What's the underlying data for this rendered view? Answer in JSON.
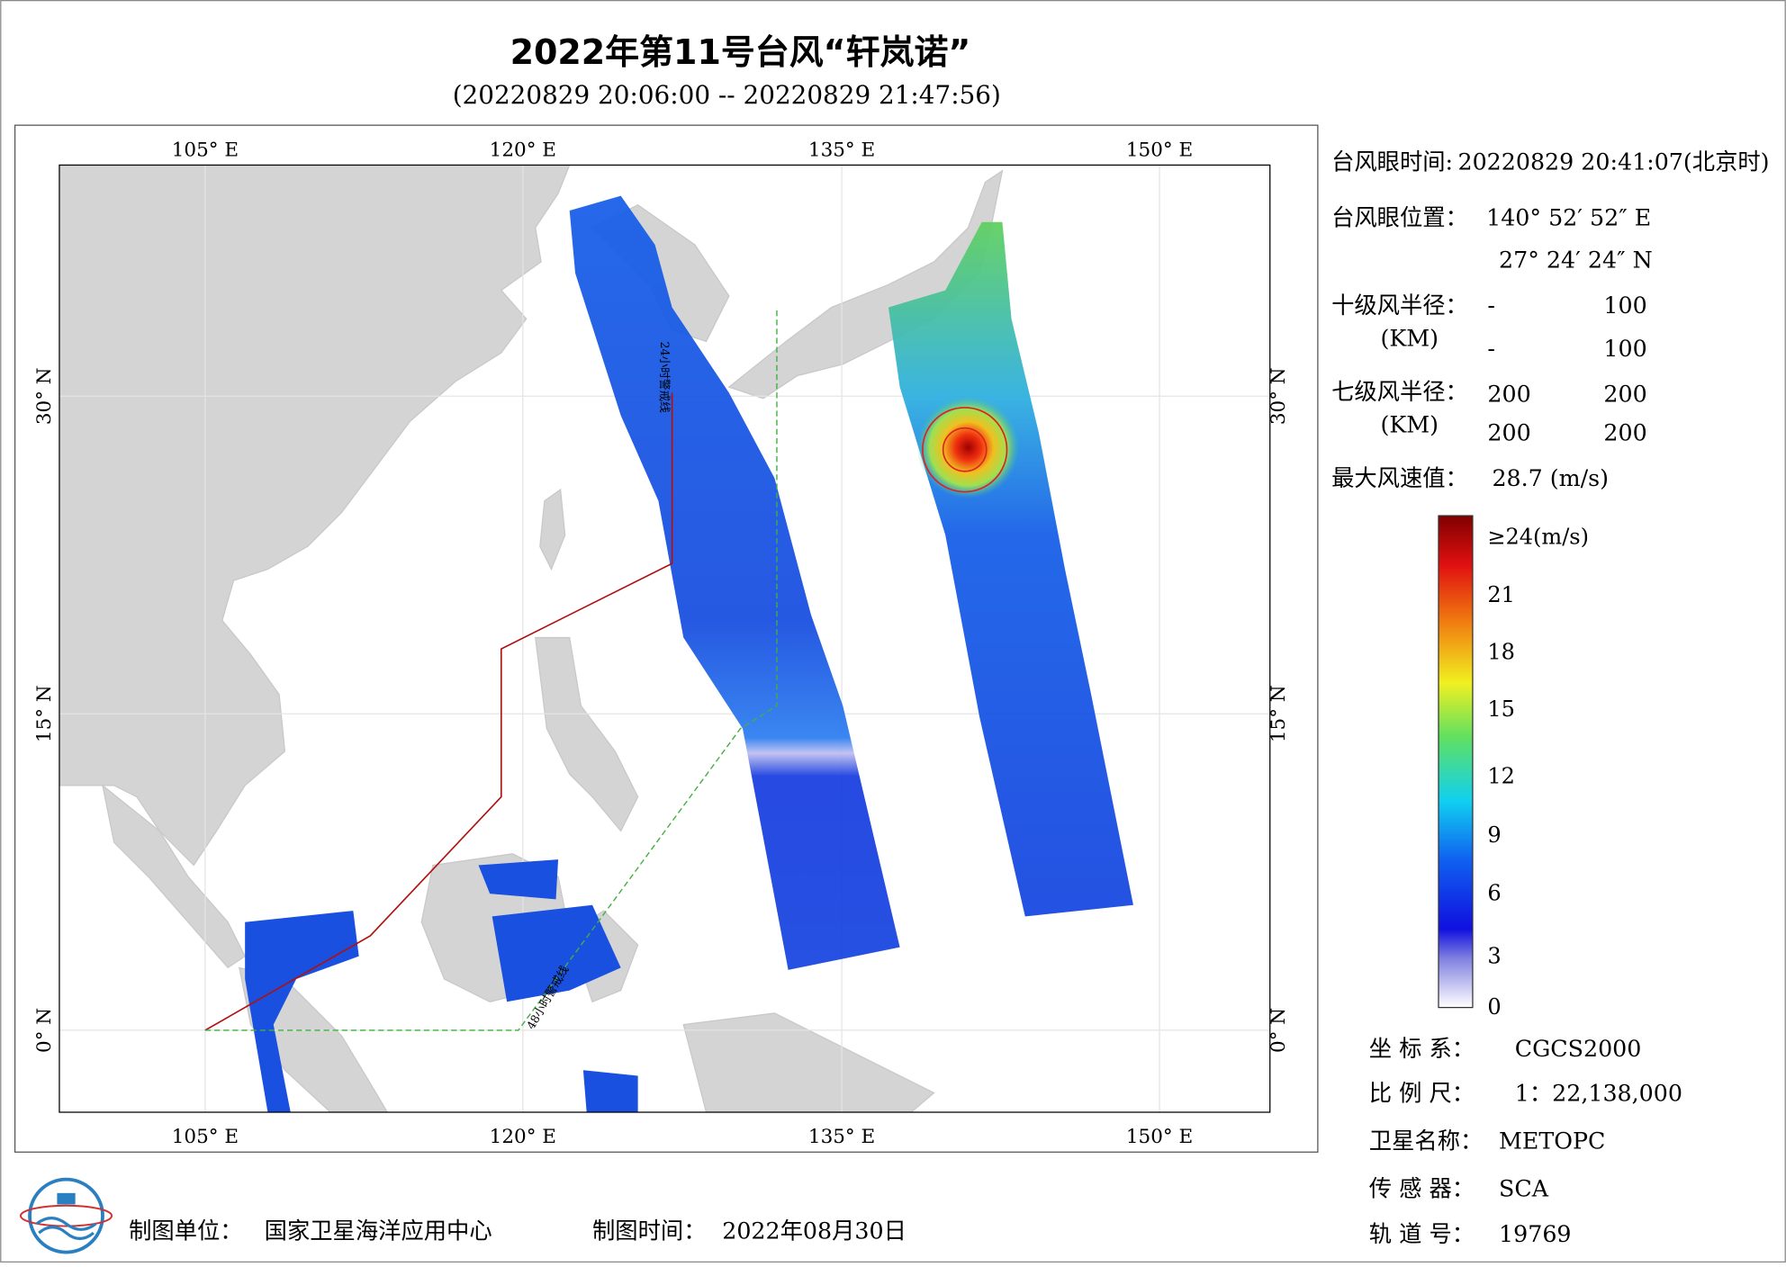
{
  "title": "2022年第11号台风“轩岚诺”",
  "subtitle": "(20220829 20:06:00 -- 20220829 21:47:56)",
  "map": {
    "lon_labels": [
      "105° E",
      "120° E",
      "135° E",
      "150° E"
    ],
    "lat_labels": [
      "30° N",
      "15° N",
      "0° N"
    ],
    "line_labels": [
      "24小时警戒线",
      "48小时警戒线"
    ]
  },
  "info": {
    "eye_time_label": "台风眼时间:",
    "eye_time": "20220829 20:41:07(北京时)",
    "eye_pos_label": "台风眼位置：",
    "eye_lon": "140° 52′ 52″ E",
    "eye_lat": "27° 24′ 24″ N",
    "r10_label": "十级风半径：",
    "r10_unit": "(KM)",
    "r10_values": [
      "-",
      "100",
      "-",
      "100"
    ],
    "r7_label": "七级风半径：",
    "r7_unit": "(KM)",
    "r7_values": [
      "200",
      "200",
      "200",
      "200"
    ],
    "max_wind_label": "最大风速值：",
    "max_wind": "28.7  (m/s)"
  },
  "colorbar": {
    "labels": [
      "≥24(m/s)",
      "21",
      "18",
      "15",
      "12",
      "9",
      "6",
      "3",
      "0"
    ]
  },
  "meta": [
    {
      "label": "坐 标 系：",
      "value": "CGCS2000"
    },
    {
      "label": "比 例 尺：",
      "value": "1：22,138,000"
    },
    {
      "label": "卫星名称：",
      "value": "METOPC"
    },
    {
      "label": "传 感 器：",
      "value": "SCA"
    },
    {
      "label": "轨 道 号：",
      "value": "19769"
    }
  ],
  "footer": {
    "unit_label": "制图单位：",
    "unit": "国家卫星海洋应用中心",
    "date_label": "制图时间：",
    "date": "2022年08月30日"
  }
}
